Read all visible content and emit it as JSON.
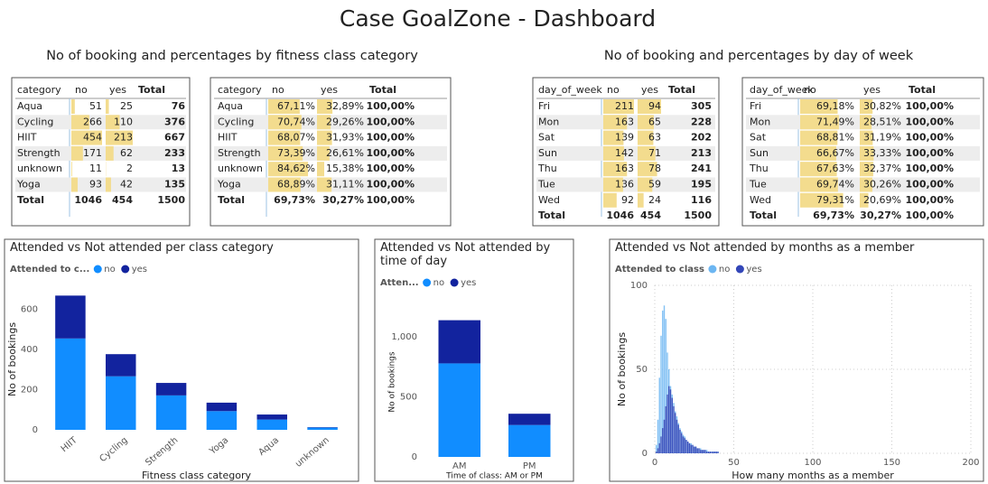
{
  "header": {
    "title": "Case GoalZone - Dashboard"
  },
  "sections": [
    {
      "title": "No of booking and percentages by fitness class category",
      "tables": [
        {
          "columns": [
            "category",
            "no",
            "yes",
            "Total"
          ],
          "rows": [
            [
              "Aqua",
              51,
              25,
              76
            ],
            [
              "Cycling",
              266,
              110,
              376
            ],
            [
              "HIIT",
              454,
              213,
              667
            ],
            [
              "Strength",
              171,
              62,
              233
            ],
            [
              "unknown",
              11,
              2,
              13
            ],
            [
              "Yoga",
              93,
              42,
              135
            ]
          ],
          "total": [
            "Total",
            1046,
            454,
            1500
          ]
        },
        {
          "columns": [
            "category",
            "no",
            "yes",
            "Total"
          ],
          "rows": [
            [
              "Aqua",
              "67,11%",
              "32,89%",
              "100,00%"
            ],
            [
              "Cycling",
              "70,74%",
              "29,26%",
              "100,00%"
            ],
            [
              "HIIT",
              "68,07%",
              "31,93%",
              "100,00%"
            ],
            [
              "Strength",
              "73,39%",
              "26,61%",
              "100,00%"
            ],
            [
              "unknown",
              "84,62%",
              "15,38%",
              "100,00%"
            ],
            [
              "Yoga",
              "68,89%",
              "31,11%",
              "100,00%"
            ]
          ],
          "total": [
            "Total",
            "69,73%",
            "30,27%",
            "100,00%"
          ]
        }
      ]
    },
    {
      "title": "No of booking and percentages by day of week",
      "tables": [
        {
          "columns": [
            "day_of_week",
            "no",
            "yes",
            "Total"
          ],
          "rows": [
            [
              "Fri",
              211,
              94,
              305
            ],
            [
              "Mon",
              163,
              65,
              228
            ],
            [
              "Sat",
              139,
              63,
              202
            ],
            [
              "Sun",
              142,
              71,
              213
            ],
            [
              "Thu",
              163,
              78,
              241
            ],
            [
              "Tue",
              136,
              59,
              195
            ],
            [
              "Wed",
              92,
              24,
              116
            ]
          ],
          "total": [
            "Total",
            1046,
            454,
            1500
          ]
        },
        {
          "columns": [
            "day_of_week",
            "no",
            "yes",
            "Total"
          ],
          "rows": [
            [
              "Fri",
              "69,18%",
              "30,82%",
              "100,00%"
            ],
            [
              "Mon",
              "71,49%",
              "28,51%",
              "100,00%"
            ],
            [
              "Sat",
              "68,81%",
              "31,19%",
              "100,00%"
            ],
            [
              "Sun",
              "66,67%",
              "33,33%",
              "100,00%"
            ],
            [
              "Thu",
              "67,63%",
              "32,37%",
              "100,00%"
            ],
            [
              "Tue",
              "69,74%",
              "30,26%",
              "100,00%"
            ],
            [
              "Wed",
              "79,31%",
              "20,69%",
              "100,00%"
            ]
          ],
          "total": [
            "Total",
            "69,73%",
            "30,27%",
            "100,00%"
          ]
        }
      ]
    }
  ],
  "chart_data": [
    {
      "type": "bar",
      "title": "Attended vs Not attended per class category",
      "legend_title": "Attended to c...",
      "x_label": "Fitness class category",
      "y_label": "No of bookings",
      "stacked": true,
      "grid": false,
      "categories": [
        "HIIT",
        "Cycling",
        "Strength",
        "Yoga",
        "Aqua",
        "unknown"
      ],
      "series": [
        {
          "name": "no",
          "color": "#118dff",
          "values": [
            454,
            266,
            171,
            93,
            51,
            11
          ]
        },
        {
          "name": "yes",
          "color": "#12239e",
          "values": [
            213,
            110,
            62,
            42,
            25,
            2
          ]
        }
      ],
      "ylim": [
        0,
        700
      ],
      "yticks": [
        0,
        200,
        400,
        600
      ]
    },
    {
      "type": "bar",
      "title": "Attended vs Not attended by time of day",
      "legend_title": "Atten...",
      "x_label": "Time of class: AM or PM",
      "y_label": "No of bookings",
      "stacked": true,
      "grid": false,
      "categories": [
        "AM",
        "PM"
      ],
      "series": [
        {
          "name": "no",
          "color": "#118dff",
          "values": [
            780,
            266
          ]
        },
        {
          "name": "yes",
          "color": "#12239e",
          "values": [
            360,
            94
          ]
        }
      ],
      "ylim": [
        0,
        1250
      ],
      "yticks": [
        0,
        500,
        {
          "value": 1000,
          "label": "1,000"
        }
      ]
    },
    {
      "type": "bar",
      "title": "Attended vs Not attended by months as a member",
      "legend_title": "Attended to class",
      "x_label": "How many months as a member",
      "y_label": "No of bookings",
      "stacked": false,
      "grid": true,
      "x": [
        1,
        2,
        3,
        4,
        5,
        6,
        7,
        8,
        9,
        10,
        11,
        12,
        13,
        14,
        15,
        16,
        17,
        18,
        19,
        20,
        21,
        22,
        23,
        24,
        25,
        26,
        27,
        28,
        29,
        30,
        31,
        32,
        33,
        34,
        35,
        36,
        37,
        38,
        39,
        40
      ],
      "series": [
        {
          "name": "no",
          "color": "#6cb6f2",
          "values": [
            5,
            20,
            45,
            70,
            85,
            88,
            80,
            60,
            50,
            40,
            35,
            30,
            25,
            22,
            18,
            15,
            13,
            11,
            10,
            8,
            7,
            6,
            6,
            5,
            4,
            4,
            3,
            3,
            3,
            2,
            2,
            2,
            2,
            1,
            1,
            1,
            1,
            1,
            1,
            1
          ]
        },
        {
          "name": "yes",
          "color": "#3346b8",
          "values": [
            1,
            3,
            6,
            10,
            15,
            20,
            28,
            35,
            40,
            38,
            33,
            28,
            24,
            20,
            17,
            14,
            12,
            10,
            9,
            8,
            7,
            6,
            5,
            5,
            4,
            4,
            3,
            3,
            2,
            2,
            2,
            2,
            1,
            1,
            1,
            1,
            1,
            1,
            1,
            1
          ]
        }
      ],
      "xlim": [
        0,
        200
      ],
      "xticks": [
        0,
        50,
        100,
        150,
        200
      ],
      "ylim": [
        0,
        100
      ],
      "yticks": [
        0,
        50,
        100
      ]
    }
  ]
}
